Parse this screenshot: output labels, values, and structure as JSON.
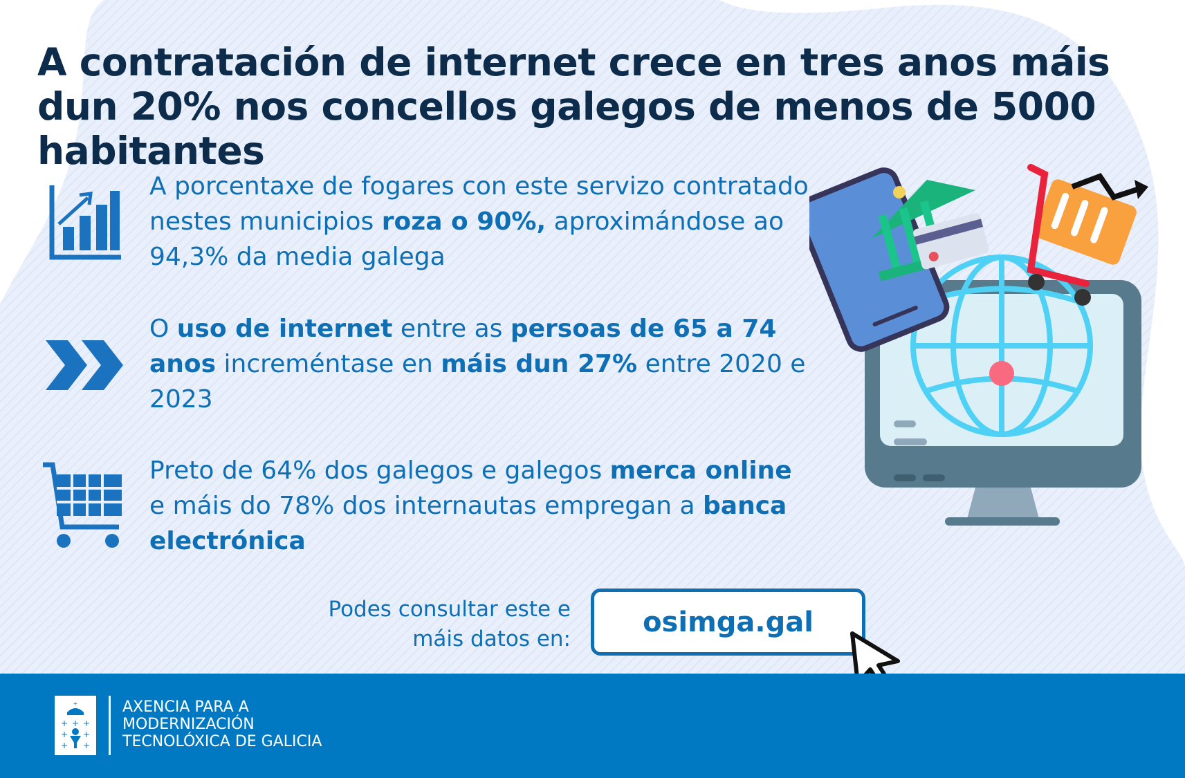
{
  "title": "A contratación de internet crece en tres anos máis dun 20% nos concellos galegos de menos de 5000 habitantes",
  "points": [
    {
      "icon": "bar-chart-growth-icon",
      "segments": [
        {
          "text": "A porcentaxe de fogares con este servizo contratado nestes municipios ",
          "bold": false
        },
        {
          "text": "roza o 90%,",
          "bold": true
        },
        {
          "text": " aproximándose ao 94,3% da media galega",
          "bold": false
        }
      ]
    },
    {
      "icon": "double-chevron-right-icon",
      "segments": [
        {
          "text": "O ",
          "bold": false
        },
        {
          "text": "uso de internet",
          "bold": true
        },
        {
          "text": " entre as ",
          "bold": false
        },
        {
          "text": "persoas de 65 a 74 anos",
          "bold": true
        },
        {
          "text": " increméntase en ",
          "bold": false
        },
        {
          "text": "máis dun 27%",
          "bold": true
        },
        {
          "text": " entre 2020 e 2023",
          "bold": false
        }
      ]
    },
    {
      "icon": "shopping-cart-icon",
      "segments": [
        {
          "text": "Preto de 64% dos galegos e galegos ",
          "bold": false
        },
        {
          "text": "merca online",
          "bold": true
        },
        {
          "text": " e máis do 78% dos internautas empregan a ",
          "bold": false
        },
        {
          "text": "banca electrónica",
          "bold": true
        }
      ]
    }
  ],
  "consult": {
    "line1": "Podes consultar este e",
    "line2": "máis datos en:"
  },
  "website": "osimga.gal",
  "footer": {
    "lines": [
      "AXENCIA PARA A",
      "MODERNIZACIÓN",
      "TECNOLÓXICA DE GALICIA"
    ]
  },
  "colors": {
    "title": "#0d2b4b",
    "text": "#0f6fb5",
    "footer": "#0079c2",
    "background": "#e8effa"
  }
}
